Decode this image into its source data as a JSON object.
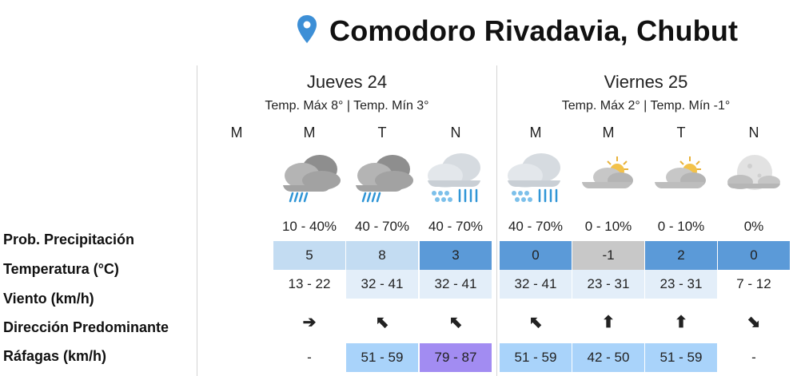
{
  "location": {
    "title": "Comodoro Rivadavia, Chubut",
    "icon": "map-pin-icon",
    "icon_color": "#3d8fd6"
  },
  "days": [
    {
      "name": "Jueves 24",
      "temps": "Temp. Máx 8° | Temp. Mín 3°"
    },
    {
      "name": "Viernes 25",
      "temps": "Temp. Máx 2° | Temp. Mín -1°"
    }
  ],
  "periods": [
    "M",
    "M",
    "T",
    "N",
    "M",
    "M",
    "T",
    "N"
  ],
  "icons": [
    "",
    "rain-cloud-icon",
    "rain-cloud-icon",
    "rain-snow-icon",
    "rain-snow-icon",
    "partly-cloudy-sun-icon",
    "partly-cloudy-sun-icon",
    "cloudy-night-icon"
  ],
  "row_labels": {
    "precip": "Prob. Precipitación",
    "temp": "Temperatura (°C)",
    "wind": "Viento (km/h)",
    "dir": "Dirección Predominante",
    "gusts": "Ráfagas (km/h)"
  },
  "precip_prob": [
    "",
    "10 - 40%",
    "40 - 70%",
    "40 - 70%",
    "40 - 70%",
    "0 - 10%",
    "0 - 10%",
    "0%"
  ],
  "temperature": [
    "",
    "5",
    "8",
    "3",
    "0",
    "-1",
    "2",
    "0"
  ],
  "temperature_colors": [
    "",
    "#c3dcf2",
    "#c3dcf2",
    "#5b9ad8",
    "#5b9ad8",
    "#c8c8c8",
    "#5b9ad8",
    "#5b9ad8"
  ],
  "wind": [
    "",
    "13 - 22",
    "32 - 41",
    "32 - 41",
    "32 - 41",
    "23 - 31",
    "23 - 31",
    "7 - 12"
  ],
  "wind_colors": [
    "",
    "",
    "#e3eef9",
    "#e3eef9",
    "#e3eef9",
    "#e3eef9",
    "#e3eef9",
    ""
  ],
  "direction": [
    "",
    "➔",
    "⬉",
    "⬉",
    "⬉",
    "⬆",
    "⬆",
    "⬊"
  ],
  "gusts": [
    "",
    "-",
    "51 - 59",
    "79 - 87",
    "51 - 59",
    "42 - 50",
    "51 - 59",
    "-"
  ],
  "gust_colors": [
    "",
    "",
    "#a9d3fa",
    "#a28cf2",
    "#a9d3fa",
    "#a9d3fa",
    "#a9d3fa",
    ""
  ]
}
